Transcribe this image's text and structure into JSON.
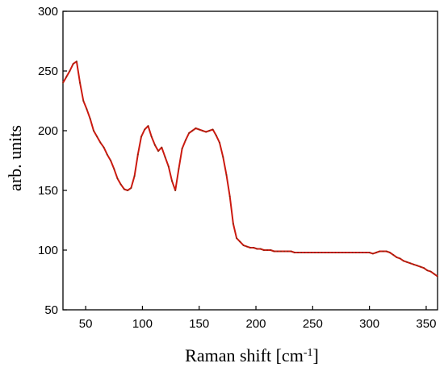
{
  "chart_data": {
    "type": "line",
    "title": "",
    "xlabel": "Raman shift [cm",
    "xlabel_superscript": "-1",
    "xlabel_suffix": "]",
    "ylabel": "arb. units",
    "xlim": [
      30,
      360
    ],
    "ylim": [
      50,
      300
    ],
    "xticks": [
      50,
      100,
      150,
      200,
      250,
      300,
      350
    ],
    "yticks": [
      50,
      100,
      150,
      200,
      250,
      300
    ],
    "grid": false,
    "legend": "none",
    "colors": {
      "line": "#cc1a10",
      "line_dark": "#7a2a10",
      "axis": "#000000"
    },
    "series": [
      {
        "x": [
          30,
          33,
          36,
          39,
          42,
          45,
          48,
          51,
          54,
          57,
          60,
          63,
          66,
          69,
          72,
          75,
          78,
          81,
          84,
          87,
          90,
          93,
          96,
          99,
          102,
          105,
          108,
          111,
          114,
          117,
          120,
          123,
          126,
          129,
          132,
          135,
          138,
          141,
          144,
          147,
          150,
          153,
          156,
          159,
          162,
          165,
          168,
          171,
          174,
          177,
          180,
          183,
          186,
          189,
          192,
          195,
          198,
          201,
          204,
          207,
          210,
          213,
          216,
          219,
          222,
          225,
          228,
          231,
          234,
          237,
          240,
          243,
          246,
          249,
          252,
          255,
          258,
          261,
          264,
          267,
          270,
          273,
          276,
          279,
          282,
          285,
          288,
          291,
          294,
          297,
          300,
          303,
          306,
          309,
          312,
          315,
          318,
          321,
          324,
          327,
          330,
          333,
          336,
          339,
          342,
          345,
          348,
          351,
          354,
          357,
          360
        ],
        "values": [
          240,
          245,
          250,
          256,
          258,
          240,
          225,
          218,
          210,
          200,
          195,
          190,
          186,
          180,
          175,
          168,
          160,
          155,
          151,
          150,
          152,
          162,
          180,
          195,
          201,
          204,
          195,
          188,
          183,
          186,
          178,
          170,
          158,
          150,
          168,
          185,
          192,
          198,
          200,
          202,
          201,
          200,
          199,
          200,
          201,
          196,
          190,
          178,
          163,
          145,
          122,
          110,
          107,
          104,
          103,
          102,
          102,
          101,
          101,
          100,
          100,
          100,
          99,
          99,
          99,
          99,
          99,
          99,
          98,
          98,
          98,
          98,
          98,
          98,
          98,
          98,
          98,
          98,
          98,
          98,
          98,
          98,
          98,
          98,
          98,
          98,
          98,
          98,
          98,
          98,
          98,
          97,
          98,
          99,
          99,
          99,
          98,
          96,
          94,
          93,
          91,
          90,
          89,
          88,
          87,
          86,
          85,
          83,
          82,
          80,
          78
        ]
      }
    ]
  }
}
